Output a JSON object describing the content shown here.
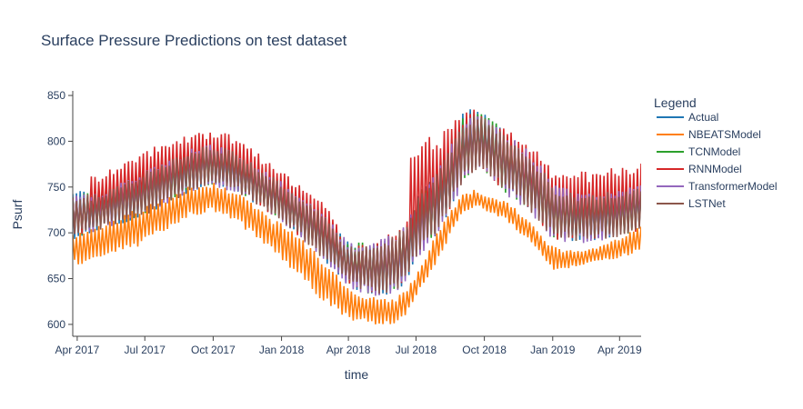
{
  "chart_data": {
    "type": "line",
    "title": "Surface Pressure Predictions on test dataset",
    "xlabel": "time",
    "ylabel": "Psurf",
    "legend_title": "Legend",
    "legend_position": "right",
    "grid": false,
    "xlim": [
      "2017-03-26",
      "2019-04-30"
    ],
    "ylim": [
      587,
      855
    ],
    "x_ticks": [
      {
        "date": "2017-04-01",
        "label": "Apr 2017"
      },
      {
        "date": "2017-07-01",
        "label": "Jul 2017"
      },
      {
        "date": "2017-10-01",
        "label": "Oct 2017"
      },
      {
        "date": "2018-01-01",
        "label": "Jan 2018"
      },
      {
        "date": "2018-04-01",
        "label": "Apr 2018"
      },
      {
        "date": "2018-07-01",
        "label": "Jul 2018"
      },
      {
        "date": "2018-10-01",
        "label": "Oct 2018"
      },
      {
        "date": "2019-01-01",
        "label": "Jan 2019"
      },
      {
        "date": "2019-04-01",
        "label": "Apr 2019"
      }
    ],
    "y_ticks": [
      600,
      650,
      700,
      750,
      800,
      850
    ],
    "series": [
      {
        "name": "Actual",
        "color": "#1f77b4",
        "x": [
          "2017-03-26",
          "2017-05-01",
          "2017-07-01",
          "2017-09-01",
          "2017-10-01",
          "2017-11-01",
          "2018-01-01",
          "2018-02-01",
          "2018-03-01",
          "2018-04-01",
          "2018-05-01",
          "2018-06-01",
          "2018-06-20",
          "2018-07-01",
          "2018-08-01",
          "2018-09-01",
          "2018-09-20",
          "2018-10-01",
          "2018-11-01",
          "2018-12-01",
          "2019-01-01",
          "2019-02-01",
          "2019-03-01",
          "2019-04-01",
          "2019-04-30"
        ],
        "upper": [
          745,
          748,
          770,
          795,
          800,
          790,
          760,
          742,
          725,
          690,
          690,
          700,
          715,
          740,
          775,
          835,
          840,
          830,
          808,
          790,
          758,
          745,
          745,
          748,
          752
        ],
        "lower": [
          692,
          702,
          718,
          745,
          752,
          745,
          712,
          690,
          668,
          642,
          630,
          632,
          648,
          672,
          700,
          752,
          770,
          768,
          740,
          725,
          698,
          688,
          692,
          695,
          700
        ]
      },
      {
        "name": "NBEATSModel",
        "color": "#ff7f0e",
        "x": [
          "2017-03-26",
          "2017-05-01",
          "2017-07-01",
          "2017-09-01",
          "2017-10-01",
          "2017-11-01",
          "2018-01-01",
          "2018-02-01",
          "2018-03-01",
          "2018-04-01",
          "2018-05-01",
          "2018-06-01",
          "2018-06-20",
          "2018-07-01",
          "2018-08-01",
          "2018-09-01",
          "2018-09-20",
          "2018-10-01",
          "2018-11-01",
          "2018-12-01",
          "2019-01-01",
          "2019-02-01",
          "2019-03-01",
          "2019-04-01",
          "2019-04-30"
        ],
        "upper": [
          700,
          708,
          730,
          752,
          755,
          745,
          710,
          692,
          668,
          640,
          630,
          628,
          640,
          655,
          705,
          742,
          748,
          742,
          735,
          712,
          685,
          680,
          685,
          695,
          710
        ],
        "lower": [
          664,
          668,
          688,
          718,
          722,
          712,
          670,
          645,
          622,
          605,
          600,
          600,
          612,
          628,
          672,
          722,
          728,
          725,
          712,
          690,
          658,
          662,
          668,
          672,
          680
        ]
      },
      {
        "name": "TCNModel",
        "color": "#2ca02c",
        "x": [
          "2017-03-26",
          "2017-05-01",
          "2017-07-01",
          "2017-09-01",
          "2017-10-01",
          "2017-11-01",
          "2018-01-01",
          "2018-02-01",
          "2018-03-01",
          "2018-04-01",
          "2018-05-01",
          "2018-06-01",
          "2018-06-20",
          "2018-07-01",
          "2018-08-01",
          "2018-09-01",
          "2018-09-20",
          "2018-10-01",
          "2018-11-01",
          "2018-12-01",
          "2019-01-01",
          "2019-02-01",
          "2019-03-01",
          "2019-04-01",
          "2019-04-30"
        ],
        "upper": [
          742,
          746,
          770,
          795,
          800,
          790,
          758,
          740,
          722,
          690,
          690,
          702,
          715,
          738,
          775,
          825,
          835,
          830,
          812,
          792,
          760,
          747,
          747,
          749,
          754
        ],
        "lower": [
          694,
          704,
          720,
          746,
          752,
          745,
          713,
          690,
          670,
          642,
          632,
          634,
          650,
          672,
          702,
          752,
          768,
          766,
          740,
          725,
          690,
          690,
          693,
          697,
          700
        ]
      },
      {
        "name": "RNNModel",
        "color": "#d62728",
        "x": [
          "2017-03-26",
          "2017-04-15",
          "2017-04-16",
          "2017-05-01",
          "2017-07-01",
          "2017-09-01",
          "2017-10-01",
          "2017-11-01",
          "2018-01-01",
          "2018-02-01",
          "2018-03-01",
          "2018-03-15",
          "2018-03-25",
          "2018-04-01",
          "2018-05-01",
          "2018-06-01",
          "2018-06-20",
          "2018-06-21",
          "2018-07-01",
          "2018-08-01",
          "2018-09-01",
          "2018-09-20",
          "2018-10-01",
          "2018-11-01",
          "2018-12-01",
          "2019-01-01",
          "2019-02-01",
          "2019-03-01",
          "2019-04-01",
          "2019-04-30"
        ],
        "upper": [
          742,
          744,
          762,
          765,
          790,
          810,
          814,
          805,
          768,
          748,
          732,
          720,
          690,
          688,
          690,
          705,
          720,
          800,
          800,
          810,
          830,
          838,
          832,
          815,
          800,
          770,
          768,
          768,
          772,
          784
        ],
        "lower": [
          694,
          702,
          705,
          710,
          725,
          750,
          755,
          745,
          712,
          690,
          670,
          660,
          650,
          644,
          632,
          636,
          650,
          652,
          672,
          702,
          752,
          768,
          765,
          742,
          726,
          692,
          690,
          694,
          697,
          700
        ]
      },
      {
        "name": "TransformerModel",
        "color": "#9467bd",
        "x": [
          "2017-03-26",
          "2017-05-01",
          "2017-07-01",
          "2017-09-01",
          "2017-10-01",
          "2017-11-01",
          "2018-01-01",
          "2018-02-01",
          "2018-03-01",
          "2018-04-01",
          "2018-05-01",
          "2018-06-01",
          "2018-06-20",
          "2018-07-01",
          "2018-08-01",
          "2018-09-01",
          "2018-09-20",
          "2018-10-01",
          "2018-11-01",
          "2018-12-01",
          "2019-01-01",
          "2019-02-01",
          "2019-03-01",
          "2019-04-01",
          "2019-04-30"
        ],
        "upper": [
          740,
          745,
          768,
          792,
          798,
          788,
          756,
          738,
          720,
          690,
          688,
          700,
          712,
          735,
          772,
          822,
          830,
          828,
          808,
          790,
          756,
          745,
          744,
          748,
          756
        ],
        "lower": [
          694,
          703,
          718,
          745,
          750,
          744,
          712,
          688,
          668,
          640,
          630,
          632,
          648,
          670,
          700,
          750,
          766,
          764,
          738,
          722,
          690,
          688,
          690,
          694,
          712
        ]
      },
      {
        "name": "LSTNet",
        "color": "#8c564b",
        "x": [
          "2017-03-26",
          "2017-05-01",
          "2017-07-01",
          "2017-09-01",
          "2017-10-01",
          "2017-11-01",
          "2018-01-01",
          "2018-02-01",
          "2018-03-01",
          "2018-04-01",
          "2018-05-01",
          "2018-06-01",
          "2018-06-20",
          "2018-07-01",
          "2018-08-01",
          "2018-09-01",
          "2018-09-20",
          "2018-10-01",
          "2018-11-01",
          "2018-12-01",
          "2019-01-01",
          "2019-02-01",
          "2019-03-01",
          "2019-04-01",
          "2019-04-30"
        ],
        "upper": [
          740,
          744,
          767,
          792,
          798,
          788,
          755,
          737,
          718,
          688,
          686,
          698,
          712,
          735,
          770,
          822,
          832,
          828,
          806,
          788,
          754,
          743,
          743,
          746,
          750
        ],
        "lower": [
          694,
          703,
          718,
          745,
          752,
          745,
          712,
          690,
          668,
          643,
          632,
          634,
          650,
          672,
          702,
          752,
          768,
          766,
          740,
          724,
          692,
          690,
          692,
          695,
          700
        ]
      }
    ]
  }
}
